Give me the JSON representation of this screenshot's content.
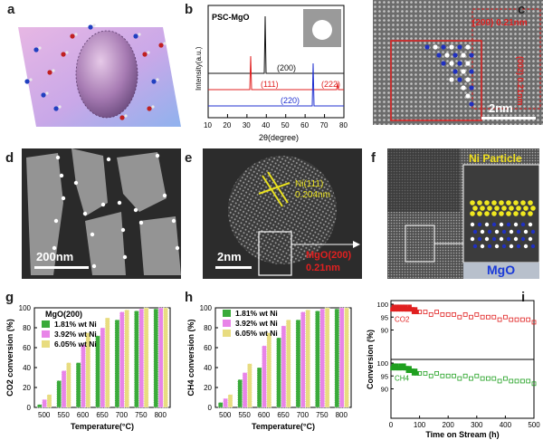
{
  "panels": {
    "a": {
      "label": "a"
    },
    "b": {
      "label": "b",
      "sample": "PSC-MgO",
      "ylabel": "Intensity(a.u.)",
      "xlabel": "2θ(degree)",
      "ticks": [
        "10",
        "20",
        "30",
        "40",
        "50",
        "60",
        "70",
        "80"
      ],
      "peaks": [
        "(200)",
        "(111)",
        "(222)",
        "(220)"
      ]
    },
    "c": {
      "label": "c",
      "d1": "(200) 0.21nm",
      "d2": "(002) 0.21nm",
      "scale": "2nm"
    },
    "d": {
      "label": "d",
      "scale": "200nm"
    },
    "e": {
      "label": "e",
      "ni_line1": "Ni(111)",
      "ni_line2": "0.204nm",
      "mgo_line1": "MgO(200)",
      "mgo_line2": "0.21nm",
      "scale": "2nm"
    },
    "f": {
      "label": "f",
      "top": "Ni Particle",
      "bottom": "MgO"
    },
    "g": {
      "label": "g"
    },
    "h": {
      "label": "h"
    },
    "i": {
      "label": "i"
    }
  },
  "chart_data": [
    {
      "type": "bar",
      "panel": "g",
      "legend_title": "MgO(200)",
      "categories": [
        "500",
        "550",
        "600",
        "650",
        "700",
        "750",
        "800"
      ],
      "series": [
        {
          "name": "1.81% wt Ni",
          "values": [
            3,
            27,
            45,
            72,
            88,
            97,
            99
          ],
          "color": "#3aaa3a"
        },
        {
          "name": "3.92% wt Ni",
          "values": [
            8,
            37,
            63,
            80,
            96,
            99,
            100
          ],
          "color": "#e884e8"
        },
        {
          "name": "6.05% wt Ni",
          "values": [
            13,
            45,
            75,
            90,
            98,
            100,
            100
          ],
          "color": "#e8dc80"
        }
      ],
      "ylabel": "CO2 conversion (%)",
      "xlabel": "Temperature(°C)",
      "yticks": [
        "0",
        "20",
        "40",
        "60",
        "80",
        "100"
      ],
      "ylim": [
        0,
        100
      ]
    },
    {
      "type": "bar",
      "panel": "h",
      "categories": [
        "500",
        "550",
        "600",
        "650",
        "700",
        "750",
        "800"
      ],
      "series": [
        {
          "name": "1.81% wt Ni",
          "values": [
            5,
            28,
            40,
            70,
            88,
            97,
            99
          ],
          "color": "#3aaa3a"
        },
        {
          "name": "3.92% wt Ni",
          "values": [
            9,
            35,
            62,
            82,
            96,
            99,
            100
          ],
          "color": "#e884e8"
        },
        {
          "name": "6.05% wt Ni",
          "values": [
            13,
            44,
            75,
            88,
            98,
            100,
            100
          ],
          "color": "#e8dc80"
        }
      ],
      "ylabel": "CH4 conversion (%)",
      "xlabel": "Temperature(°C)",
      "yticks": [
        "0",
        "20",
        "40",
        "60",
        "80",
        "100"
      ],
      "ylim": [
        0,
        100
      ]
    },
    {
      "type": "scatter",
      "panel": "i",
      "xlabel": "Time on Stream (h)",
      "ylabel": "Conversion (%)",
      "xticks": [
        "0",
        "100",
        "200",
        "300",
        "400",
        "500"
      ],
      "xlim": [
        0,
        500
      ],
      "series": [
        {
          "name": "CO2",
          "color": "#e02020",
          "x": [
            5,
            10,
            15,
            20,
            25,
            30,
            35,
            40,
            45,
            50,
            55,
            60,
            65,
            70,
            75,
            80,
            85,
            90,
            100,
            120,
            140,
            160,
            180,
            200,
            220,
            240,
            260,
            280,
            300,
            320,
            340,
            360,
            380,
            400,
            420,
            440,
            460,
            480,
            500
          ],
          "y": [
            98,
            99,
            98,
            99,
            98,
            99,
            98,
            99,
            98,
            99,
            98,
            98,
            99,
            98,
            98,
            97,
            98,
            97,
            97,
            97,
            96,
            97,
            96,
            96,
            96,
            95,
            96,
            95,
            96,
            95,
            95,
            95,
            94,
            95,
            94,
            94,
            94,
            94,
            93
          ]
        },
        {
          "name": "CH4",
          "color": "#20a020",
          "x": [
            5,
            10,
            15,
            20,
            25,
            30,
            35,
            40,
            45,
            50,
            55,
            60,
            65,
            70,
            75,
            80,
            85,
            90,
            100,
            120,
            140,
            160,
            180,
            200,
            220,
            240,
            260,
            280,
            300,
            320,
            340,
            360,
            380,
            400,
            420,
            440,
            460,
            480,
            500
          ],
          "y": [
            98,
            99,
            98,
            99,
            98,
            98,
            99,
            98,
            99,
            98,
            98,
            97,
            98,
            97,
            97,
            96,
            97,
            96,
            96,
            96,
            95,
            96,
            95,
            95,
            95,
            94,
            95,
            94,
            95,
            94,
            94,
            94,
            93,
            94,
            93,
            93,
            93,
            93,
            92
          ]
        }
      ],
      "yticks_top": [
        "100",
        "95",
        "90"
      ],
      "yticks_bottom": [
        "100",
        "95",
        "90"
      ],
      "ylim": [
        90,
        100
      ]
    }
  ]
}
